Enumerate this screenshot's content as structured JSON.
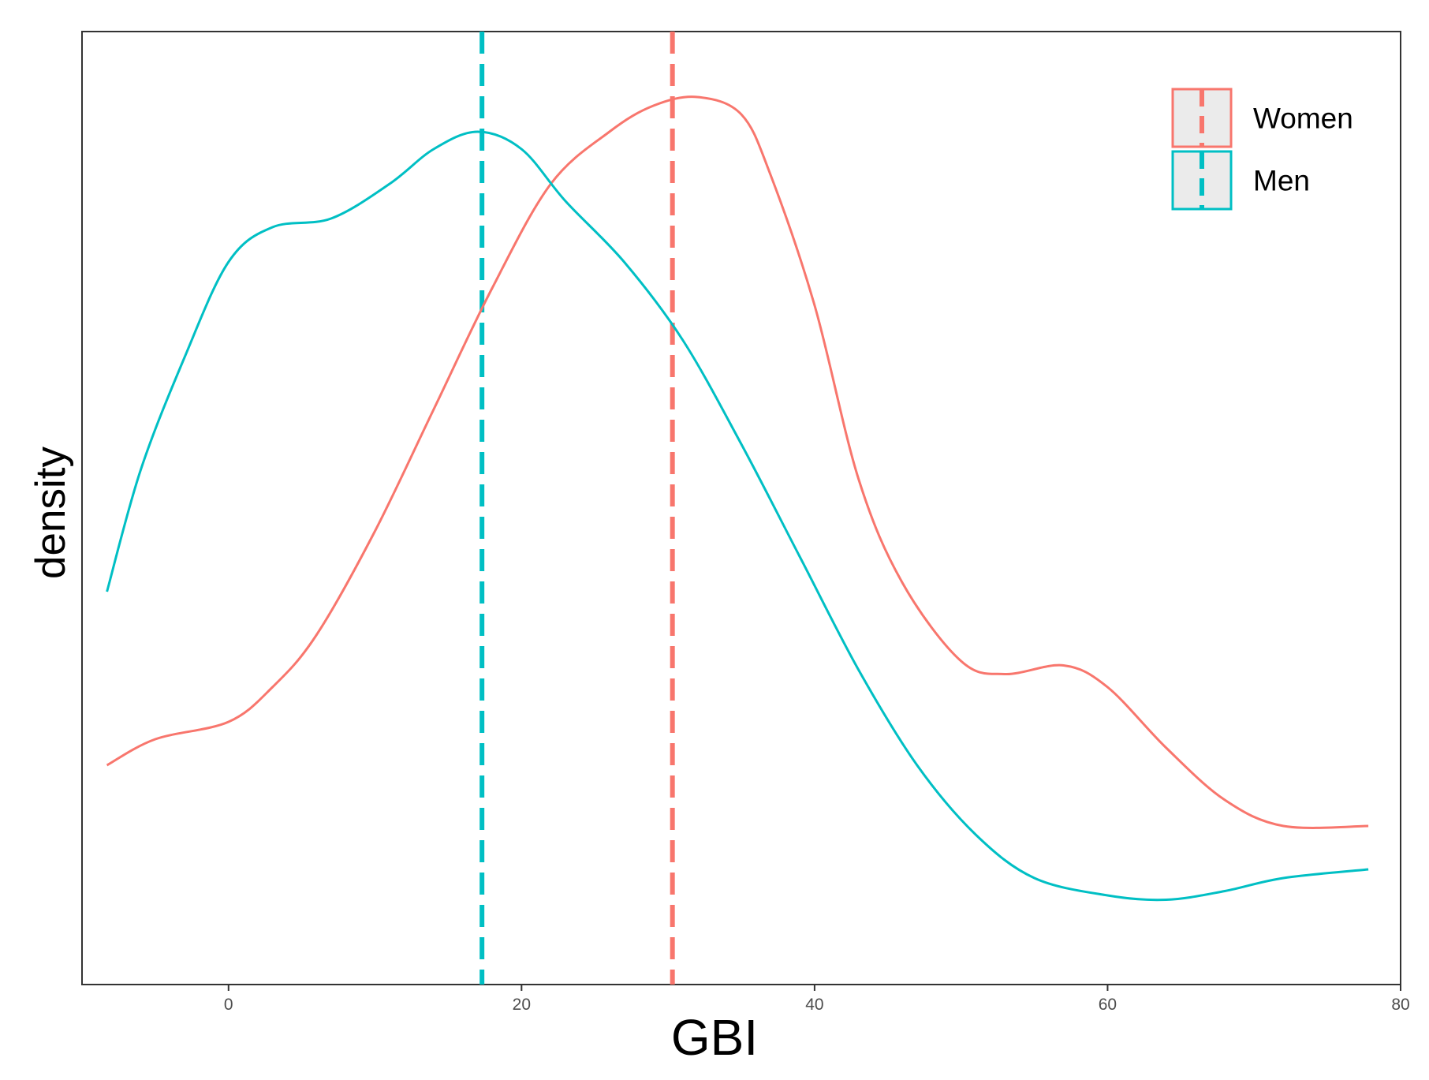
{
  "chart_data": {
    "type": "line",
    "subtype": "density",
    "title": "",
    "xlabel": "GBI",
    "ylabel": "density",
    "xlim": [
      -10,
      80
    ],
    "ylim": [
      0,
      1
    ],
    "y_ticks_shown": false,
    "grid": false,
    "legend_position": "top-right",
    "x_ticks": [
      {
        "value": 0,
        "label": "0"
      },
      {
        "value": 20,
        "label": "20"
      },
      {
        "value": 40,
        "label": "40"
      },
      {
        "value": 60,
        "label": "60"
      },
      {
        "value": 80,
        "label": "80"
      }
    ],
    "series": [
      {
        "name": "Women",
        "color": "#F8766D",
        "x": [
          -8.3,
          -5,
          0,
          3,
          6,
          10,
          14,
          18,
          22,
          26,
          29,
          32,
          35,
          37,
          40,
          43,
          46,
          50,
          53,
          57,
          60,
          64,
          68,
          72,
          77.8
        ],
        "y": [
          0.2,
          0.23,
          0.25,
          0.29,
          0.35,
          0.47,
          0.61,
          0.75,
          0.87,
          0.93,
          0.96,
          0.97,
          0.95,
          0.88,
          0.73,
          0.53,
          0.41,
          0.32,
          0.305,
          0.315,
          0.29,
          0.22,
          0.16,
          0.13,
          0.13
        ]
      },
      {
        "name": "Men",
        "color": "#00BFC4",
        "x": [
          -8.3,
          -6,
          -3,
          0,
          3,
          7,
          11,
          14,
          17,
          20,
          23,
          27,
          31,
          35,
          39,
          43,
          47,
          51,
          55,
          60,
          64,
          68,
          72,
          77.8
        ],
        "y": [
          0.4,
          0.54,
          0.67,
          0.78,
          0.82,
          0.83,
          0.87,
          0.91,
          0.93,
          0.91,
          0.85,
          0.78,
          0.69,
          0.57,
          0.44,
          0.31,
          0.2,
          0.12,
          0.07,
          0.05,
          0.045,
          0.055,
          0.07,
          0.08
        ]
      }
    ],
    "vlines": [
      {
        "series": "Men",
        "x": 17.3,
        "color": "#00BFC4",
        "style": "dashed"
      },
      {
        "series": "Women",
        "x": 30.3,
        "color": "#F8766D",
        "style": "dashed"
      }
    ]
  }
}
